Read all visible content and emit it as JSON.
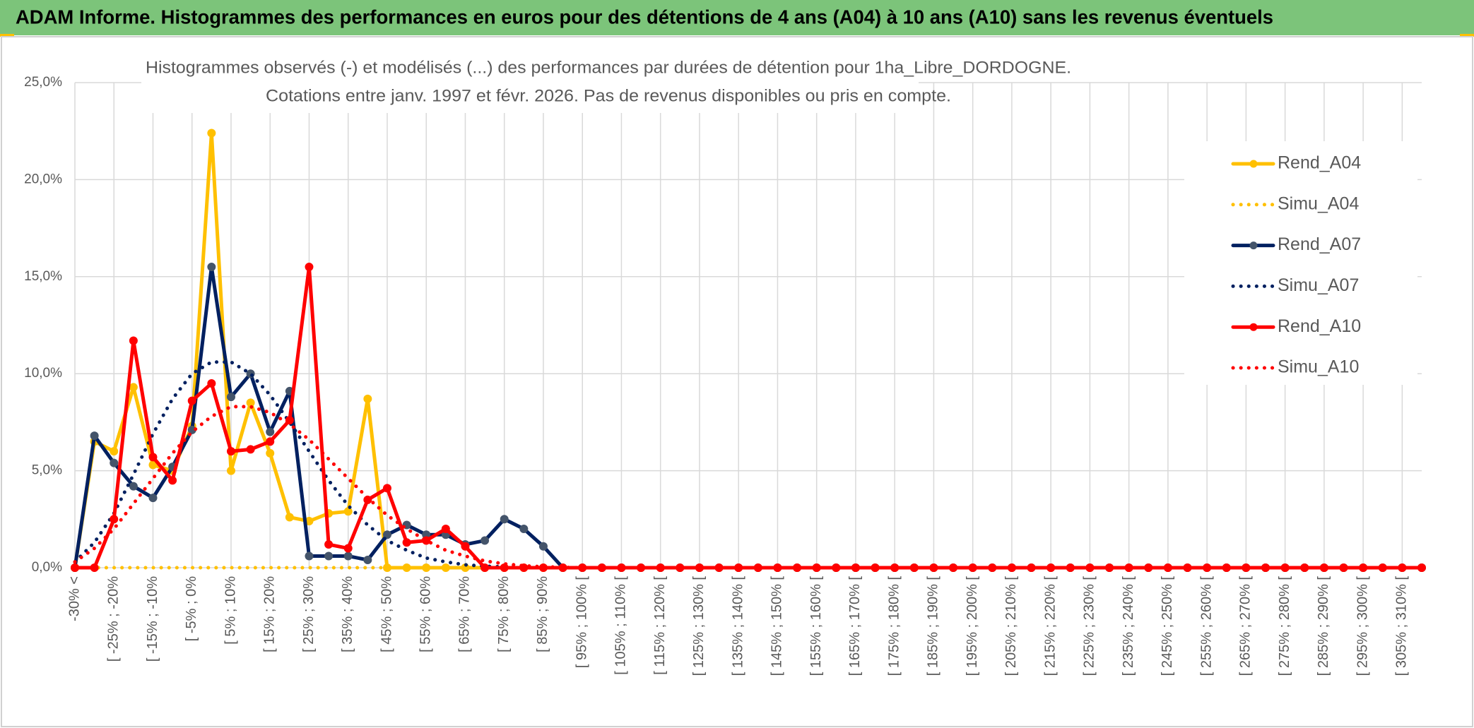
{
  "header": {
    "title": "ADAM Informe. Histogrammes des performances en euros pour des détentions de 4 ans (A04) à 10 ans (A10) sans les revenus éventuels"
  },
  "chart_data": {
    "type": "line",
    "title": "Histogrammes observés (-) et modélisés (...) des performances par durées de détention pour 1ha_Libre_DORDOGNE.",
    "subtitle": "Cotations entre janv. 1997 et févr. 2026. Pas de revenus disponibles ou pris en compte.",
    "categories": [
      "-30% <",
      null,
      "[ -25% ; -20%",
      null,
      "[ -15% ; -10%",
      null,
      "[ -5% ; 0%",
      null,
      "[ 5% ; 10%",
      null,
      "[ 15% ; 20%",
      null,
      "[ 25% ; 30%",
      null,
      "[ 35% ; 40%",
      null,
      "[ 45% ; 50%",
      null,
      "[ 55% ; 60%",
      null,
      "[ 65% ; 70%",
      null,
      "[ 75% ; 80%",
      null,
      "[ 85% ; 90%",
      null,
      "[ 95% ; 100% [",
      null,
      "[ 105% ; 110% [",
      null,
      "[ 115% ; 120% [",
      null,
      "[ 125% ; 130% [",
      null,
      "[ 135% ; 140% [",
      null,
      "[ 145% ; 150% [",
      null,
      "[ 155% ; 160% [",
      null,
      "[ 165% ; 170% [",
      null,
      "[ 175% ; 180% [",
      null,
      "[ 185% ; 190% [",
      null,
      "[ 195% ; 200% [",
      null,
      "[ 205% ; 210% [",
      null,
      "[ 215% ; 220% [",
      null,
      "[ 225% ; 230% [",
      null,
      "[ 235% ; 240% [",
      null,
      "[ 245% ; 250% [",
      null,
      "[ 255% ; 260% [",
      null,
      "[ 265% ; 270% [",
      null,
      "[ 275% ; 280% [",
      null,
      "[ 285% ; 290% [",
      null,
      "[ 295% ; 300% [",
      null,
      "[ 305% ; 310% [",
      null
    ],
    "ylim": [
      0,
      25
    ],
    "yticks": [
      {
        "value": 0,
        "label": "0,0%"
      },
      {
        "value": 5,
        "label": "5,0%"
      },
      {
        "value": 10,
        "label": "10,0%"
      },
      {
        "value": 15,
        "label": "15,0%"
      },
      {
        "value": 20,
        "label": "20,0%"
      },
      {
        "value": 25,
        "label": "25,0%"
      }
    ],
    "grid": true,
    "legend": "right",
    "series": [
      {
        "name": "Rend_A04",
        "color": "#ffc000",
        "style": "solid",
        "markers": true,
        "values": [
          0,
          6.5,
          6.0,
          9.3,
          5.3,
          5.0,
          7.3,
          22.4,
          5.0,
          8.5,
          5.9,
          2.6,
          2.4,
          2.8,
          2.9,
          8.7,
          0,
          0,
          0,
          0,
          0,
          0,
          0,
          0,
          0,
          0,
          0,
          0,
          0,
          0,
          0,
          0,
          0,
          0,
          0,
          0,
          0,
          0,
          0,
          0,
          0,
          0,
          0,
          0,
          0,
          0,
          0,
          0,
          0,
          0,
          0,
          0,
          0,
          0,
          0,
          0,
          0,
          0,
          0,
          0,
          0,
          0,
          0,
          0,
          0,
          0,
          0,
          0,
          0,
          0
        ]
      },
      {
        "name": "Simu_A04",
        "color": "#ffc000",
        "style": "dotted",
        "markers": false,
        "values": [
          0,
          0,
          0,
          0,
          0,
          0,
          0,
          0,
          0,
          0,
          0,
          0,
          0,
          0,
          0,
          0,
          0,
          0,
          0,
          0,
          0,
          0,
          0,
          0,
          0,
          0,
          0,
          0,
          0,
          0,
          0,
          0,
          0,
          0,
          0,
          0,
          0,
          0,
          0,
          0,
          0,
          0,
          0,
          0,
          0,
          0,
          0,
          0,
          0,
          0,
          0,
          0,
          0,
          0,
          0,
          0,
          0,
          0,
          0,
          0,
          0,
          0,
          0,
          0,
          0,
          0,
          0,
          0,
          0,
          0
        ]
      },
      {
        "name": "Rend_A07",
        "color": "#002060",
        "style": "solid",
        "markers": true,
        "values": [
          0,
          6.8,
          5.4,
          4.2,
          3.6,
          5.2,
          7.1,
          15.5,
          8.8,
          10.0,
          7.0,
          9.1,
          0.6,
          0.6,
          0.6,
          0.4,
          1.7,
          2.2,
          1.7,
          1.7,
          1.2,
          1.4,
          2.5,
          2.0,
          1.1,
          0,
          0,
          0,
          0,
          0,
          0,
          0,
          0,
          0,
          0,
          0,
          0,
          0,
          0,
          0,
          0,
          0,
          0,
          0,
          0,
          0,
          0,
          0,
          0,
          0,
          0,
          0,
          0,
          0,
          0,
          0,
          0,
          0,
          0,
          0,
          0,
          0,
          0,
          0,
          0,
          0,
          0,
          0,
          0,
          0
        ]
      },
      {
        "name": "Simu_A07",
        "color": "#002060",
        "style": "dotted",
        "markers": false,
        "values": [
          0.3,
          1.3,
          2.8,
          4.8,
          6.9,
          8.7,
          10.0,
          10.6,
          10.6,
          10.0,
          8.9,
          7.5,
          6.0,
          4.5,
          3.2,
          2.2,
          1.4,
          0.9,
          0.5,
          0.3,
          0.15,
          0.08,
          0.04,
          0.02,
          0.01,
          0,
          0,
          0,
          0,
          0,
          0,
          0,
          0,
          0,
          0,
          0,
          0,
          0,
          0,
          0,
          0,
          0,
          0,
          0,
          0,
          0,
          0,
          0,
          0,
          0,
          0,
          0,
          0,
          0,
          0,
          0,
          0,
          0,
          0,
          0,
          0,
          0,
          0,
          0,
          0,
          0,
          0,
          0,
          0,
          0
        ]
      },
      {
        "name": "Rend_A10",
        "color": "#ff0000",
        "style": "solid",
        "markers": true,
        "values": [
          0,
          0,
          2.5,
          11.7,
          5.7,
          4.5,
          8.6,
          9.5,
          6.0,
          6.1,
          6.5,
          7.6,
          15.5,
          1.2,
          1.0,
          3.5,
          4.1,
          1.3,
          1.4,
          2.0,
          1.1,
          0,
          0,
          0,
          0,
          0,
          0,
          0,
          0,
          0,
          0,
          0,
          0,
          0,
          0,
          0,
          0,
          0,
          0,
          0,
          0,
          0,
          0,
          0,
          0,
          0,
          0,
          0,
          0,
          0,
          0,
          0,
          0,
          0,
          0,
          0,
          0,
          0,
          0,
          0,
          0,
          0,
          0,
          0,
          0,
          0,
          0,
          0,
          0,
          0
        ]
      },
      {
        "name": "Simu_A10",
        "color": "#ff0000",
        "style": "dotted",
        "markers": false,
        "values": [
          0.3,
          1.0,
          2.0,
          3.3,
          4.6,
          5.9,
          7.0,
          7.8,
          8.3,
          8.3,
          8.0,
          7.4,
          6.6,
          5.6,
          4.6,
          3.6,
          2.7,
          2.0,
          1.4,
          0.9,
          0.6,
          0.35,
          0.2,
          0.1,
          0.05,
          0.02,
          0,
          0,
          0,
          0,
          0,
          0,
          0,
          0,
          0,
          0,
          0,
          0,
          0,
          0,
          0,
          0,
          0,
          0,
          0,
          0,
          0,
          0,
          0,
          0,
          0,
          0,
          0,
          0,
          0,
          0,
          0,
          0,
          0,
          0,
          0,
          0,
          0,
          0,
          0,
          0,
          0,
          0,
          0,
          0
        ]
      }
    ]
  }
}
